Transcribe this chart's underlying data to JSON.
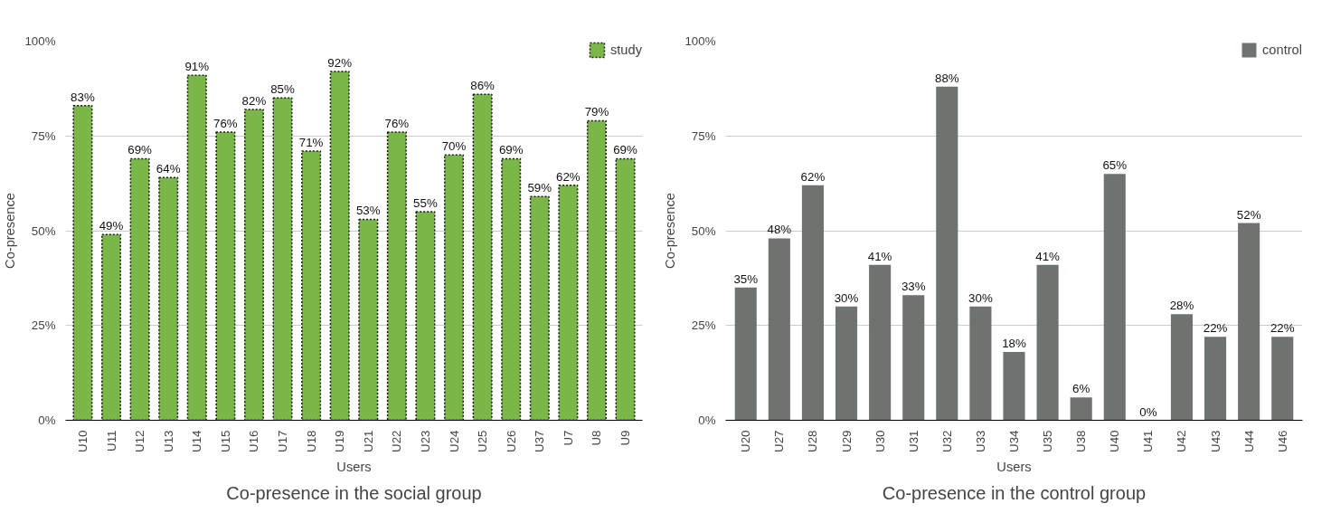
{
  "chart_data": [
    {
      "type": "bar",
      "title": "Co-presence in the social group",
      "xlabel": "Users",
      "ylabel": "Co-presence",
      "categories": [
        "U10",
        "U11",
        "U12",
        "U13",
        "U14",
        "U15",
        "U16",
        "U17",
        "U18",
        "U19",
        "U21",
        "U22",
        "U23",
        "U24",
        "U25",
        "U26",
        "U37",
        "U7",
        "U8",
        "U9"
      ],
      "series": [
        {
          "name": "study",
          "color": "#7ab648",
          "line_style": "dashed",
          "values": [
            83,
            49,
            69,
            64,
            91,
            76,
            82,
            85,
            71,
            92,
            53,
            76,
            55,
            70,
            86,
            69,
            59,
            62,
            79,
            69
          ],
          "value_labels": [
            "83%",
            "49%",
            "69%",
            "64%",
            "91%",
            "76%",
            "82%",
            "85%",
            "71%",
            "92%",
            "53%",
            "76%",
            "55%",
            "70%",
            "86%",
            "69%",
            "59%",
            "62%",
            "79%",
            "69%"
          ]
        }
      ],
      "ylim": [
        0,
        100
      ],
      "yticks": [
        {
          "value": 0,
          "label": "0%"
        },
        {
          "value": 25,
          "label": "25%"
        },
        {
          "value": 50,
          "label": "50%"
        },
        {
          "value": 75,
          "label": "75%"
        },
        {
          "value": 100,
          "label": "100%"
        }
      ],
      "grid": "y",
      "legend": "top right"
    },
    {
      "type": "bar",
      "title": "Co-presence in the control group",
      "xlabel": "Users",
      "ylabel": "Co-presence",
      "categories": [
        "U20",
        "U27",
        "U28",
        "U29",
        "U30",
        "U31",
        "U32",
        "U33",
        "U34",
        "U35",
        "U38",
        "U40",
        "U41",
        "U42",
        "U43",
        "U44",
        "U46"
      ],
      "series": [
        {
          "name": "control",
          "color": "#6f7370",
          "values": [
            35,
            48,
            62,
            30,
            41,
            33,
            88,
            30,
            18,
            41,
            6,
            65,
            0,
            28,
            22,
            52,
            22
          ],
          "value_labels": [
            "35%",
            "48%",
            "62%",
            "30%",
            "41%",
            "33%",
            "88%",
            "30%",
            "18%",
            "41%",
            "6%",
            "65%",
            "0%",
            "28%",
            "22%",
            "52%",
            "22%"
          ]
        }
      ],
      "ylim": [
        0,
        100
      ],
      "yticks": [
        {
          "value": 0,
          "label": "0%"
        },
        {
          "value": 25,
          "label": "25%"
        },
        {
          "value": 50,
          "label": "50%"
        },
        {
          "value": 75,
          "label": "75%"
        },
        {
          "value": 100,
          "label": "100%"
        }
      ],
      "grid": "y",
      "legend": "top right"
    }
  ]
}
